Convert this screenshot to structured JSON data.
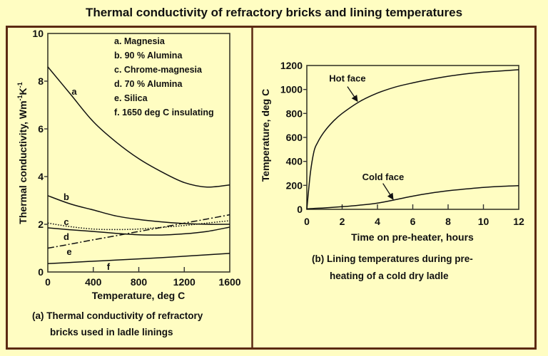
{
  "page": {
    "title": "Thermal conductivity of refractory bricks and lining temperatures",
    "background_color": "#FFFDC2",
    "frame_color": "#5C2A12"
  },
  "chart_data": [
    {
      "type": "line",
      "title": "(a) Thermal conductivity of refractory bricks used in ladle linings",
      "caption_lines": [
        "(a) Thermal conductivity of refractory",
        "bricks used in ladle linings"
      ],
      "xlabel": "Temperature, deg C",
      "ylabel": "Thermal conductivity, Wm-1K-1",
      "ylabel_parts": {
        "main": "Thermal conductivity, Wm",
        "sup1": "-1",
        "unit2": "K",
        "sup2": "-1"
      },
      "xlim": [
        0,
        1600
      ],
      "ylim": [
        0,
        10
      ],
      "xticks": [
        0,
        400,
        800,
        1200,
        1600
      ],
      "yticks": [
        0,
        2,
        4,
        6,
        8,
        10
      ],
      "grid": false,
      "legend_position": "inside upper right",
      "legend": [
        "a. Magnesia",
        "b. 90 % Alumina",
        "c. Chrome-magnesia",
        "d. 70 % Alumina",
        "e. Silica",
        "f. 1650 deg C insulating"
      ],
      "x": [
        0,
        200,
        400,
        600,
        800,
        1000,
        1200,
        1400,
        1600
      ],
      "series": [
        {
          "key": "a",
          "name": "Magnesia",
          "style": "solid",
          "values": [
            8.6,
            7.45,
            6.3,
            5.45,
            4.75,
            4.2,
            3.75,
            3.56,
            3.65
          ]
        },
        {
          "key": "b",
          "name": "90 % Alumina",
          "style": "solid",
          "values": [
            3.2,
            2.85,
            2.6,
            2.35,
            2.2,
            2.1,
            2.03,
            2.0,
            2.0
          ]
        },
        {
          "key": "c",
          "name": "Chrome-magnesia",
          "style": "dotted",
          "values": [
            2.05,
            1.9,
            1.8,
            1.78,
            1.8,
            1.87,
            1.95,
            2.05,
            2.15
          ]
        },
        {
          "key": "d",
          "name": "70 % Alumina",
          "style": "solid",
          "values": [
            1.85,
            1.77,
            1.7,
            1.62,
            1.56,
            1.55,
            1.6,
            1.7,
            1.88
          ]
        },
        {
          "key": "e",
          "name": "Silica",
          "style": "dashdot",
          "values": [
            1.0,
            1.17,
            1.35,
            1.52,
            1.7,
            1.87,
            2.05,
            2.22,
            2.4
          ]
        },
        {
          "key": "f",
          "name": "1650 deg C insulating",
          "style": "solid",
          "values": [
            0.35,
            0.4,
            0.45,
            0.5,
            0.55,
            0.6,
            0.66,
            0.72,
            0.78
          ]
        }
      ],
      "annotations": [
        {
          "text": "a",
          "x": 232,
          "y": 7.58
        },
        {
          "text": "b",
          "x": 163,
          "y": 3.16
        },
        {
          "text": "c",
          "x": 163,
          "y": 2.12
        },
        {
          "text": "d",
          "x": 163,
          "y": 1.49
        },
        {
          "text": "e",
          "x": 188,
          "y": 0.87
        },
        {
          "text": "f",
          "x": 533,
          "y": 0.24
        }
      ]
    },
    {
      "type": "line",
      "title": "(b) Lining temperatures during pre-heating of a cold dry ladle",
      "caption_lines": [
        "(b) Lining temperatures during pre-",
        "heating of a cold dry ladle"
      ],
      "xlabel": "Time on pre-heater, hours",
      "ylabel": "Temperature, deg C",
      "xlim": [
        0,
        12
      ],
      "ylim": [
        0,
        1200
      ],
      "xticks": [
        0,
        2,
        4,
        6,
        8,
        10,
        12
      ],
      "yticks": [
        0,
        200,
        400,
        600,
        800,
        1000,
        1200
      ],
      "grid": false,
      "series": [
        {
          "key": "hot",
          "name": "Hot face",
          "style": "solid",
          "x": [
            0,
            0.2,
            0.4,
            0.6,
            1,
            1.5,
            2,
            3,
            4,
            5,
            6,
            7,
            8,
            9,
            10,
            11,
            12
          ],
          "values": [
            0,
            300,
            480,
            555,
            650,
            735,
            800,
            900,
            970,
            1020,
            1055,
            1085,
            1110,
            1130,
            1145,
            1155,
            1165
          ]
        },
        {
          "key": "cold",
          "name": "Cold face",
          "style": "solid",
          "x": [
            0,
            1,
            2,
            3,
            4,
            5,
            6,
            7,
            8,
            9,
            10,
            11,
            12
          ],
          "values": [
            5,
            12,
            22,
            35,
            52,
            80,
            110,
            135,
            155,
            170,
            183,
            192,
            197
          ]
        }
      ],
      "annotations": [
        {
          "text": "Hot face",
          "x": 2.3,
          "y": 1095,
          "arrow_from": [
            2.3,
            1024
          ],
          "arrow_to": [
            2.87,
            901
          ]
        },
        {
          "text": "Cold face",
          "x": 4.32,
          "y": 273,
          "arrow_from": [
            4.31,
            216
          ],
          "arrow_to": [
            4.89,
            83
          ]
        }
      ]
    }
  ]
}
